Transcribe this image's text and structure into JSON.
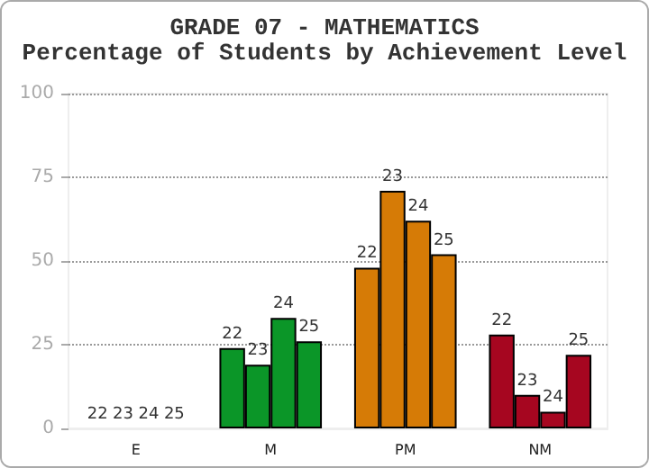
{
  "chart_data": {
    "type": "bar",
    "title": "GRADE 07 - MATHEMATICS",
    "subtitle": "Percentage of Students by Achievement Level",
    "categories": [
      "E",
      "M",
      "PM",
      "NM"
    ],
    "series": [
      {
        "name": "22",
        "colors": [
          "#0b9628",
          "#0b9628",
          "#d67b06",
          "#a60620"
        ],
        "values": [
          0,
          24,
          48,
          28
        ]
      },
      {
        "name": "23",
        "colors": [
          "#0b9628",
          "#0b9628",
          "#d67b06",
          "#a60620"
        ],
        "values": [
          0,
          19,
          71,
          10
        ]
      },
      {
        "name": "24",
        "colors": [
          "#0b9628",
          "#0b9628",
          "#d67b06",
          "#a60620"
        ],
        "values": [
          0,
          33,
          62,
          5
        ]
      },
      {
        "name": "25",
        "colors": [
          "#0b9628",
          "#0b9628",
          "#d67b06",
          "#a60620"
        ],
        "values": [
          0,
          26,
          52,
          22
        ]
      }
    ],
    "ylim": [
      0,
      100
    ],
    "yticks": [
      0,
      25,
      50,
      75,
      100
    ],
    "grid": "y",
    "legend": false
  }
}
